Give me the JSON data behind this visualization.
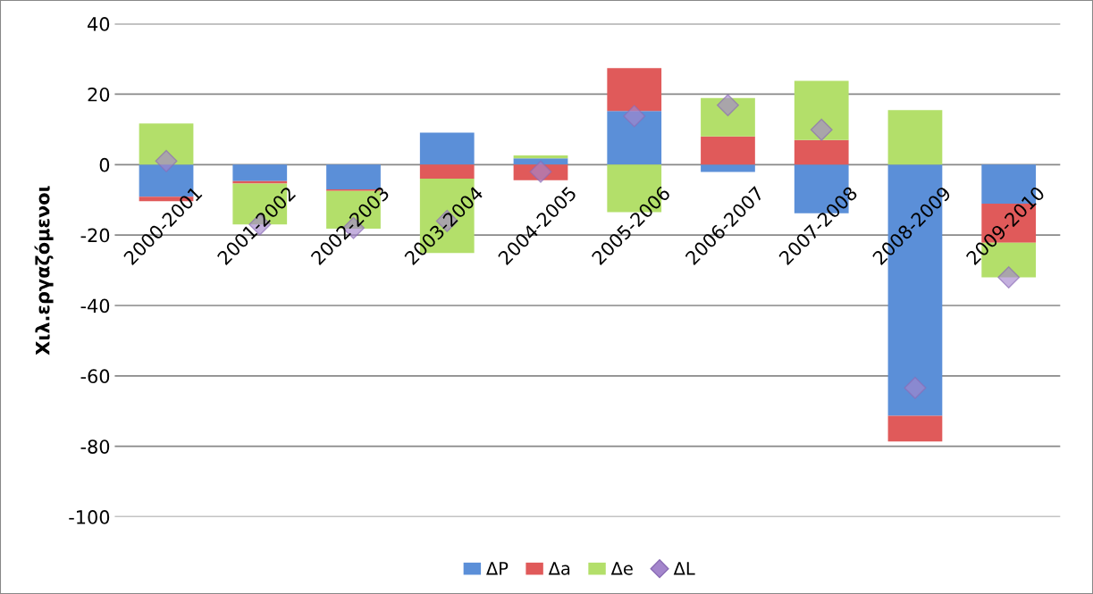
{
  "chart_data": {
    "type": "bar",
    "stacked": true,
    "ylabel": "Χιλ.εργαζόμενοι",
    "categories": [
      "2000-2001",
      "2001-2002",
      "2002-2003",
      "2003-2004",
      "2004-2005",
      "2005-2006",
      "2006-2007",
      "2007-2008",
      "2008-2009",
      "2009-2010"
    ],
    "series": [
      {
        "name": "ΔP",
        "color": "#5b8fd8",
        "values": [
          -9.1,
          -4.7,
          -7,
          9.1,
          1.8,
          15.2,
          -2.1,
          -13.8,
          -71.3,
          -11.1
        ]
      },
      {
        "name": "Δa",
        "color": "#e05a5a",
        "values": [
          -1.3,
          -0.7,
          -0.5,
          -4,
          -4.4,
          12.2,
          8,
          7,
          -7.3,
          -11.1
        ]
      },
      {
        "name": "Δe",
        "color": "#b3df6a",
        "values": [
          11.7,
          -11.6,
          -10.7,
          -21.1,
          0.8,
          -13.5,
          10.9,
          16.8,
          15.5,
          -9.8
        ]
      },
      {
        "name": "ΔL",
        "type": "scatter",
        "marker": "diamond",
        "color": "#a486cc",
        "x": [
          "2000-2001",
          "2001-2002",
          "2002-2003",
          "2003-2004",
          "2004-2005",
          "2005-2006",
          "2006-2007",
          "2007-2008",
          "2008-2009",
          "2009-2010"
        ],
        "values": [
          1,
          -17,
          -18,
          -16,
          -2,
          13.8,
          16.9,
          9.9,
          -63.4,
          -32
        ]
      }
    ],
    "ylim": [
      -100,
      40
    ],
    "yticks": [
      -100,
      -80,
      -60,
      -40,
      -20,
      0,
      20,
      40
    ],
    "grid": "y",
    "legend": "bottom"
  }
}
